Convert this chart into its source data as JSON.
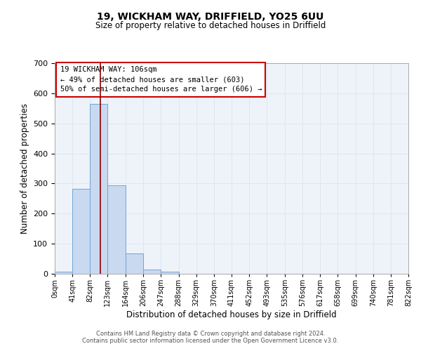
{
  "title1": "19, WICKHAM WAY, DRIFFIELD, YO25 6UU",
  "title2": "Size of property relative to detached houses in Driffield",
  "xlabel": "Distribution of detached houses by size in Driffield",
  "ylabel": "Number of detached properties",
  "bin_edges": [
    0,
    41,
    82,
    123,
    164,
    206,
    247,
    288,
    329,
    370,
    411,
    452,
    493,
    535,
    576,
    617,
    658,
    699,
    740,
    781,
    822
  ],
  "counts": [
    7,
    283,
    565,
    293,
    68,
    13,
    8,
    0,
    0,
    0,
    0,
    0,
    0,
    0,
    0,
    0,
    0,
    0,
    0,
    0
  ],
  "bar_color": "#c9d9f0",
  "bar_edge_color": "#6ea6d6",
  "vline_x": 106,
  "vline_color": "#8b0000",
  "ylim": [
    0,
    700
  ],
  "yticks": [
    0,
    100,
    200,
    300,
    400,
    500,
    600,
    700
  ],
  "tick_labels": [
    "0sqm",
    "41sqm",
    "82sqm",
    "123sqm",
    "164sqm",
    "206sqm",
    "247sqm",
    "288sqm",
    "329sqm",
    "370sqm",
    "411sqm",
    "452sqm",
    "493sqm",
    "535sqm",
    "576sqm",
    "617sqm",
    "658sqm",
    "699sqm",
    "740sqm",
    "781sqm",
    "822sqm"
  ],
  "annotation_title": "19 WICKHAM WAY: 106sqm",
  "annotation_line1": "← 49% of detached houses are smaller (603)",
  "annotation_line2": "50% of semi-detached houses are larger (606) →",
  "grid_color": "#dce6f1",
  "bg_color": "#eef3fa",
  "footer1": "Contains HM Land Registry data © Crown copyright and database right 2024.",
  "footer2": "Contains public sector information licensed under the Open Government Licence v3.0."
}
